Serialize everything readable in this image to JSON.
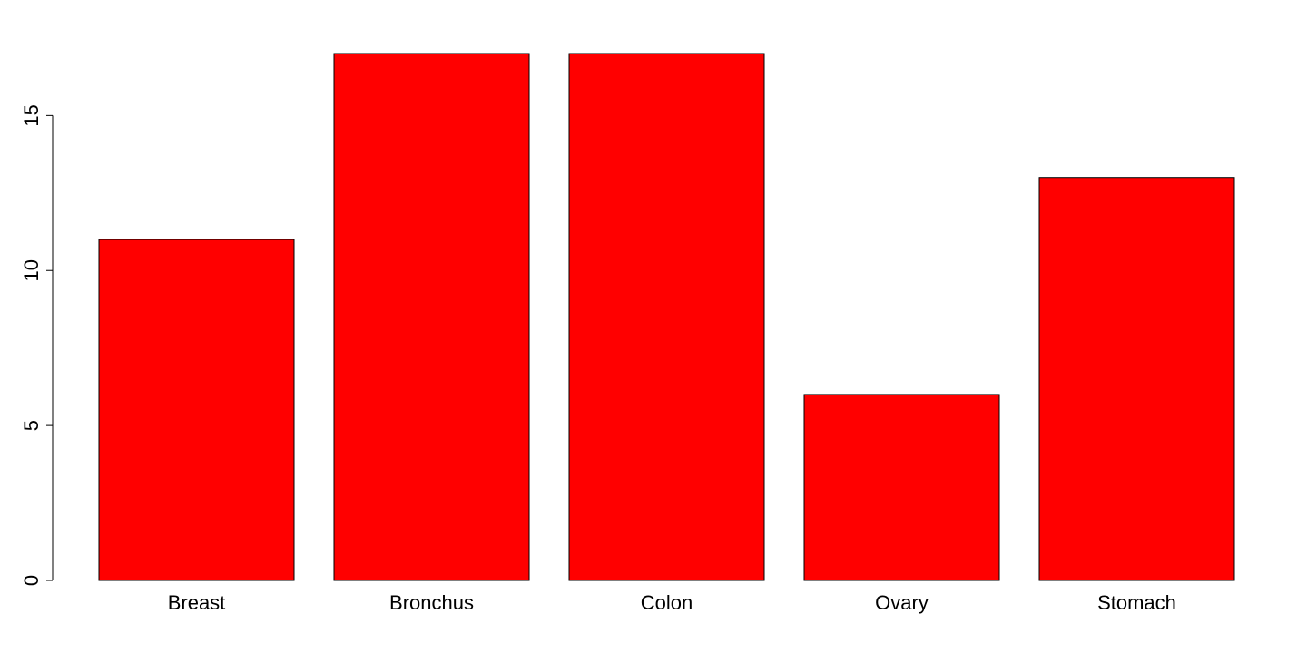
{
  "chart_data": {
    "type": "bar",
    "categories": [
      "Breast",
      "Bronchus",
      "Colon",
      "Ovary",
      "Stomach"
    ],
    "values": [
      11,
      17,
      17,
      6,
      13
    ],
    "title": "",
    "xlabel": "",
    "ylabel": "",
    "ylim": [
      0,
      17
    ],
    "yticks": [
      "0",
      "5",
      "10",
      "15"
    ],
    "bar_color": "#ff0000",
    "grid": false,
    "legend": "none"
  }
}
